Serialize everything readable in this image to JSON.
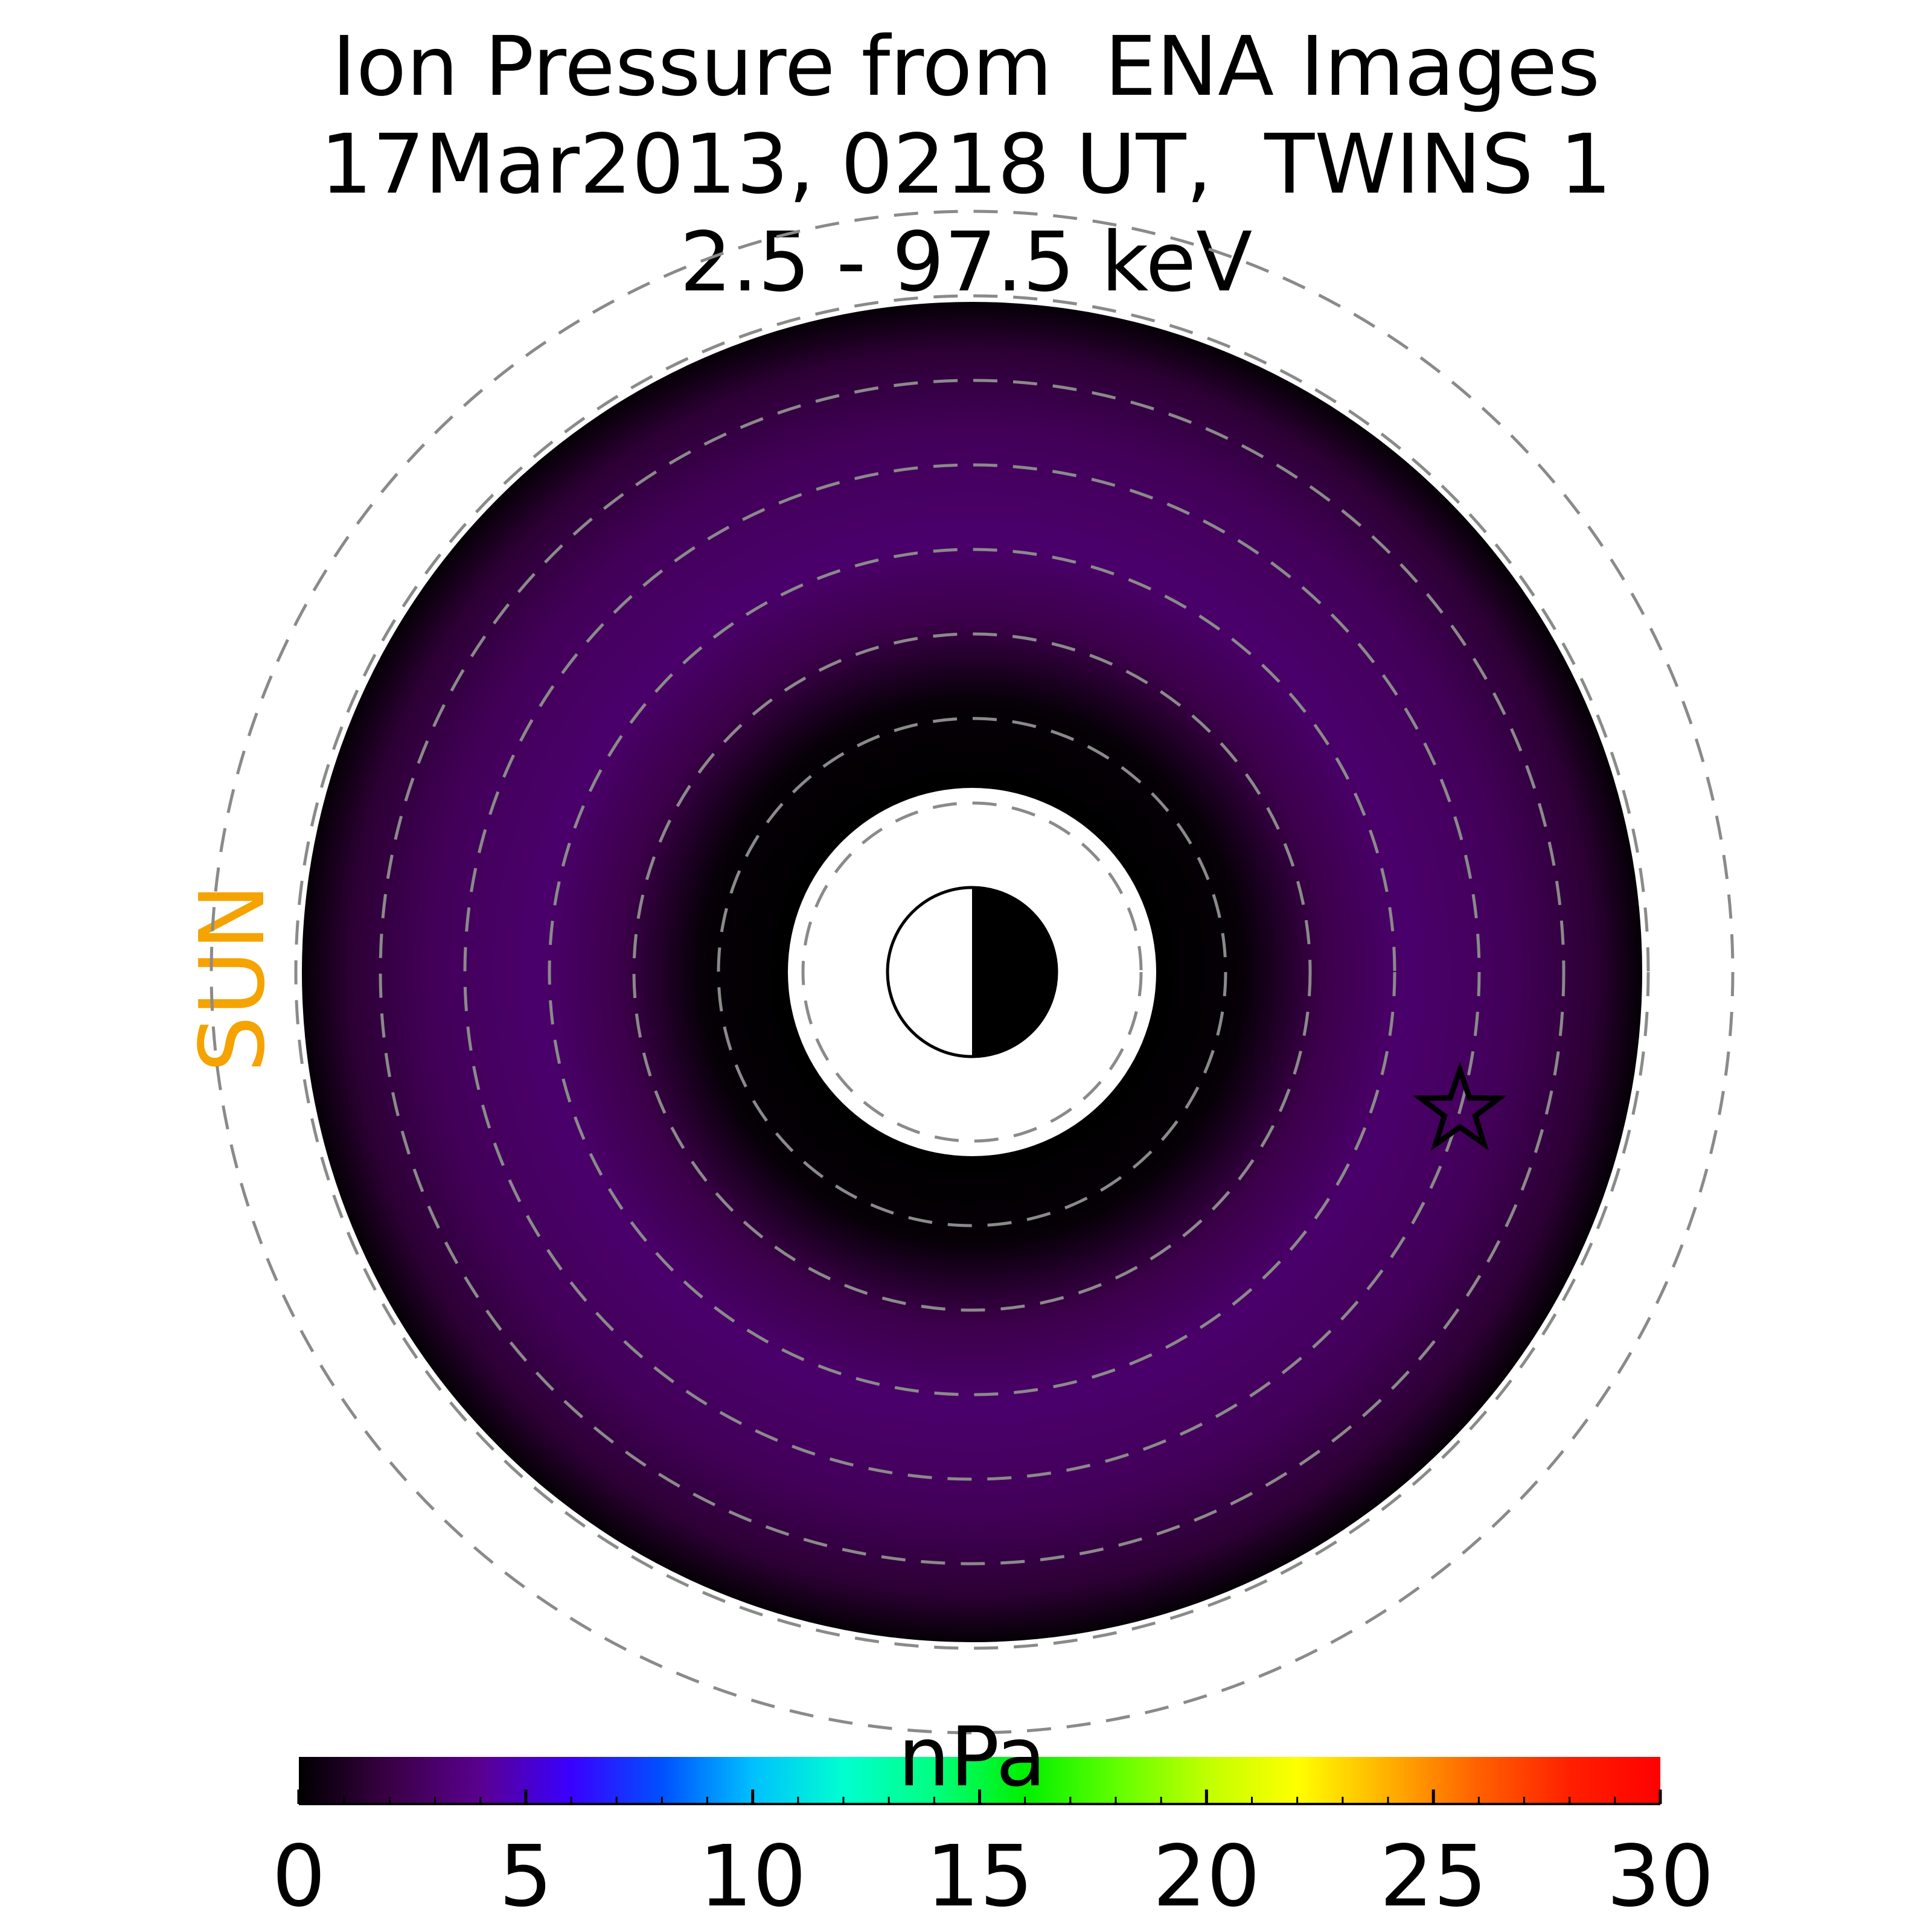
{
  "colors": {
    "sun_label": "#f5a300",
    "background": "#ffffff",
    "ring_dash": "#8a8a8a"
  },
  "chart_data": {
    "type": "heatmap",
    "projection": "polar equatorial plane (sun to the left)",
    "title_lines": [
      "Ion Pressure from  ENA Images",
      "17Mar2013, 0218 UT,  TWINS 1",
      "2.5 - 97.5 keV"
    ],
    "sun_label": "SUN",
    "colorbar": {
      "label": "nPa",
      "range": [
        0,
        30
      ],
      "ticks": [
        0,
        5,
        10,
        15,
        20,
        25,
        30
      ],
      "colormap_stops": [
        [
          0,
          "#000000"
        ],
        [
          2,
          "#3a0045"
        ],
        [
          4,
          "#5a0090"
        ],
        [
          6,
          "#3a00ff"
        ],
        [
          8,
          "#0050ff"
        ],
        [
          10,
          "#00c0ff"
        ],
        [
          12,
          "#00ffd0"
        ],
        [
          14,
          "#00ff80"
        ],
        [
          16,
          "#00f000"
        ],
        [
          18,
          "#60ff00"
        ],
        [
          20,
          "#c0ff00"
        ],
        [
          22,
          "#ffff00"
        ],
        [
          24,
          "#ffb000"
        ],
        [
          26,
          "#ff6000"
        ],
        [
          28,
          "#ff2000"
        ],
        [
          30,
          "#ff0000"
        ]
      ]
    },
    "pressure_field": {
      "description": "low pressure ring, roughly uniform",
      "typical_value_nPa": 2.5,
      "peak_value_nPa": 3.0,
      "inner_edge_value_nPa": 0,
      "outer_edge_value_nPa": 0
    },
    "radial_grid_rings": 8,
    "markers": [
      "earth-day-night",
      "star-satellite"
    ]
  }
}
